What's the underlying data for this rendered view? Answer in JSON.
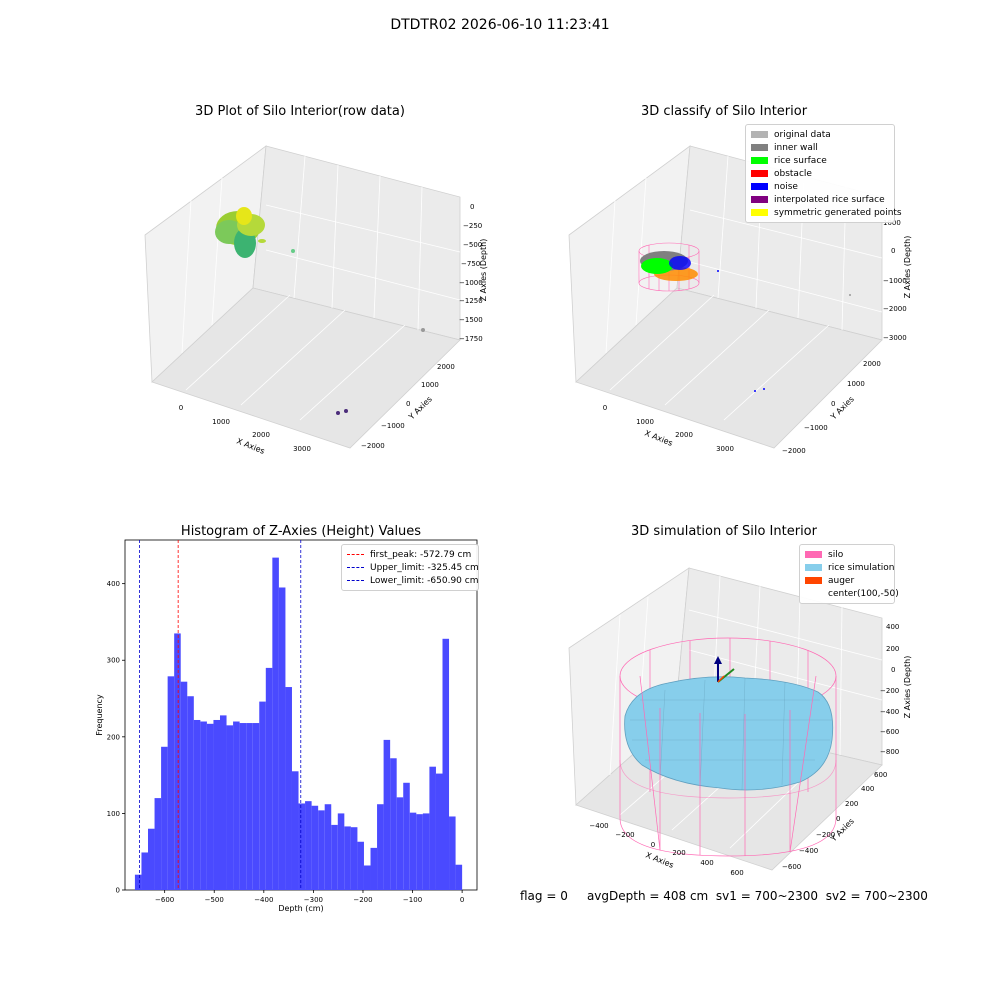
{
  "suptitle": "DTDTR02 2026-06-10 11:23:41",
  "status_line": {
    "flag": "flag = 0",
    "avg_depth": "avgDepth = 408 cm",
    "sv1": "sv1 = 700~2300",
    "sv2": "sv2 = 700~2300"
  },
  "colors": {
    "hist_bar": "#4a4aff",
    "first_peak_line": "#ff0000",
    "limit_line": "#0000cc",
    "pane": "#f2f2f2",
    "silo_wire": "#ff69b4",
    "rice_sim": "#87ceeb",
    "auger": "#ff4500"
  },
  "panels": {
    "raw": {
      "title": "3D Plot of Silo Interior(row data)",
      "xlabel": "X Axies",
      "ylabel": "Y Axies",
      "zlabel": "Z Axies (Depth)",
      "xticks": [
        "0",
        "1000",
        "2000",
        "3000"
      ],
      "yticks": [
        "2000",
        "1000",
        "0",
        "−1000",
        "−2000"
      ],
      "zticks": [
        "0",
        "−250",
        "−500",
        "−750",
        "−1000",
        "−1250",
        "−1500",
        "−1750"
      ]
    },
    "classify": {
      "title": "3D classify of Silo Interior",
      "xlabel": "X Axies",
      "ylabel": "Y Axies",
      "zlabel": "Z Axies (Depth)",
      "xticks": [
        "0",
        "1000",
        "2000",
        "3000"
      ],
      "yticks": [
        "2000",
        "1000",
        "0",
        "−1000",
        "−2000"
      ],
      "zticks": [
        "1000",
        "0",
        "−1000",
        "−2000",
        "−3000"
      ],
      "legend": [
        {
          "label": "original data",
          "color": "#b3b3b3"
        },
        {
          "label": "inner wall",
          "color": "#808080"
        },
        {
          "label": "rice surface",
          "color": "#00ff00"
        },
        {
          "label": "obstacle",
          "color": "#ff0000"
        },
        {
          "label": "noise",
          "color": "#0000ff"
        },
        {
          "label": "interpolated rice surface",
          "color": "#800080"
        },
        {
          "label": "symmetric generated points",
          "color": "#ffff00"
        }
      ]
    },
    "simulation": {
      "title": "3D simulation of Silo Interior",
      "xlabel": "X Axies",
      "ylabel": "Y Axies",
      "zlabel": "Z Axies (Depth)",
      "xticks": [
        "−400",
        "−200",
        "0",
        "200",
        "400",
        "600"
      ],
      "yticks": [
        "600",
        "400",
        "200",
        "0",
        "−200",
        "−400",
        "−600"
      ],
      "zticks": [
        "400",
        "200",
        "0",
        "−200",
        "−400",
        "−600",
        "−800"
      ],
      "legend": [
        {
          "label": "silo",
          "color": "#ff69b4"
        },
        {
          "label": "rice simulation",
          "color": "#87ceeb"
        },
        {
          "label": "auger",
          "color": "#ff4500"
        },
        {
          "label": "center(100,-50)",
          "color": ""
        }
      ]
    }
  },
  "chart_data": {
    "type": "bar",
    "title": "Histogram of Z-Axies (Height) Values",
    "xlabel": "Depth (cm)",
    "ylabel": "Frequency",
    "xlim": [
      -680,
      30
    ],
    "ylim": [
      0,
      457
    ],
    "xticks": [
      -600,
      -500,
      -400,
      -300,
      -200,
      -100,
      0
    ],
    "xtick_labels": [
      "−600",
      "−500",
      "−400",
      "−300",
      "−200",
      "−100",
      "0"
    ],
    "yticks": [
      0,
      100,
      200,
      300,
      400
    ],
    "ytick_labels": [
      "0",
      "100",
      "200",
      "300",
      "400"
    ],
    "bin_start": -660,
    "bin_width": 13.2,
    "values": [
      20,
      49,
      80,
      120,
      187,
      279,
      335,
      272,
      253,
      222,
      220,
      217,
      222,
      228,
      215,
      220,
      218,
      218,
      218,
      246,
      290,
      434,
      395,
      265,
      155,
      113,
      116,
      110,
      104,
      112,
      85,
      100,
      83,
      82,
      63,
      32,
      55,
      112,
      196,
      172,
      121,
      140,
      101,
      99,
      100,
      161,
      152,
      328,
      96,
      33
    ],
    "reference_lines": [
      {
        "label": "first_peak: -572.79 cm",
        "x": -572.79,
        "color": "#ff0000"
      },
      {
        "label": "Upper_limit: -325.45 cm",
        "x": -325.45,
        "color": "#0000cc"
      },
      {
        "label": "Lower_limit: -650.90 cm",
        "x": -650.9,
        "color": "#0000cc"
      }
    ],
    "legend_position": "top-right",
    "grid": false
  }
}
